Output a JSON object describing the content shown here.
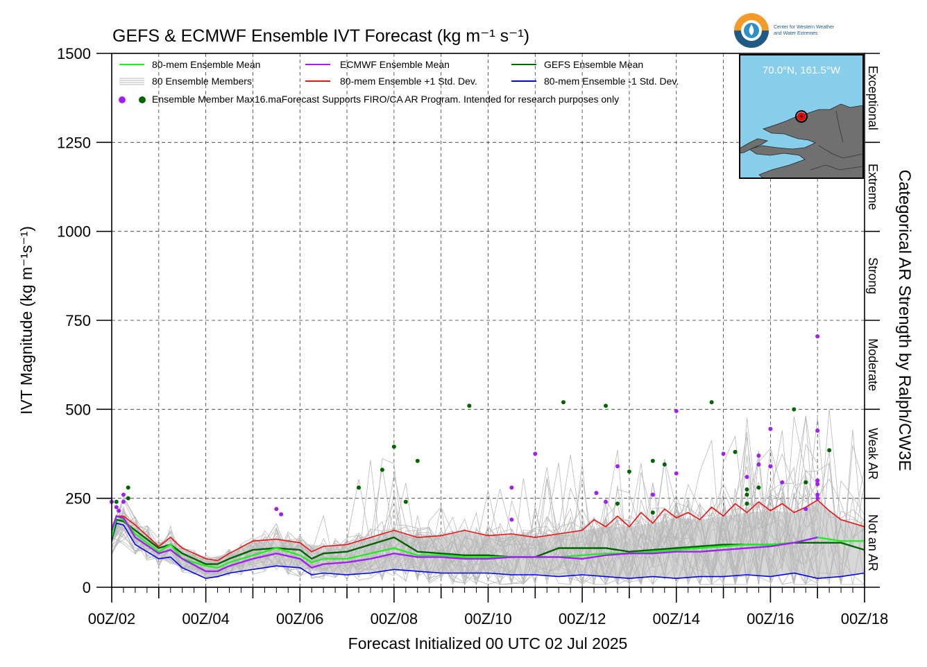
{
  "colors": {
    "ens_mean": "#22ee22",
    "members": "#b8b8b8",
    "ecmwf_mean": "#a020f0",
    "plus_std": "#ee1111",
    "gefs_mean": "#006400",
    "minus_std": "#0000ee",
    "spread_fill": "#d3d3d3",
    "map_ocean": "#87ceeb",
    "map_land": "#707070",
    "marker": "#ee0000"
  },
  "logo": {
    "line1": "Center for Western Weather",
    "line2": "and Water Extremes"
  },
  "map_inset": {
    "location": "70.0°N, 161.5°W"
  },
  "chart_data": {
    "type": "line",
    "title": "GEFS & ECMWF Ensemble IVT Forecast (kg m⁻¹ s⁻¹)",
    "xlabel": "Forecast Initialized 00 UTC 02 Jul 2025",
    "ylabel": "IVT Magnitude (kg m⁻¹s⁻¹)",
    "right_axis_title": "Categorical AR Strength by Ralph/CW3E",
    "ylim": [
      0,
      1500
    ],
    "yticks": [
      0,
      250,
      500,
      750,
      1000,
      1250,
      1500
    ],
    "xlim_days": [
      2,
      18
    ],
    "xtick_labels": [
      "00Z/02",
      "00Z/04",
      "00Z/06",
      "00Z/08",
      "00Z/10",
      "00Z/12",
      "00Z/14",
      "00Z/16",
      "00Z/18"
    ],
    "categories": [
      {
        "label": "Not an AR",
        "range": [
          0,
          250
        ]
      },
      {
        "label": "Weak AR",
        "range": [
          250,
          500
        ]
      },
      {
        "label": "Moderate",
        "range": [
          500,
          750
        ]
      },
      {
        "label": "Strong",
        "range": [
          750,
          1000
        ]
      },
      {
        "label": "Extreme",
        "range": [
          1000,
          1250
        ]
      },
      {
        "label": "Exceptional",
        "range": [
          1250,
          1500
        ]
      }
    ],
    "legend": {
      "ens_mean": "80-mem Ensemble Mean",
      "members": "80 Ensemble Members",
      "ecmwf_mean": "ECMWF Ensemble Mean",
      "plus_std": "80-mem Ensemble +1 Std. Dev.",
      "gefs_mean": "GEFS Ensemble Mean",
      "minus_std": "80-mem Ensemble -1 Std. Dev.",
      "max": "Ensemble Member Max",
      "note": "16.maForecast Supports FIRO/CA AR Program. Intended for research purposes only"
    },
    "series": [
      {
        "name": "80-mem Ensemble Mean",
        "key": "ens_mean",
        "x": [
          2.0,
          2.1,
          2.25,
          2.5,
          3.0,
          3.25,
          3.5,
          4.0,
          4.25,
          4.5,
          5.0,
          5.5,
          6.0,
          6.25,
          6.5,
          7.0,
          7.5,
          8.0,
          8.5,
          9.0,
          9.5,
          10.0,
          10.5,
          11.0,
          11.5,
          12.0,
          12.5,
          13.0,
          13.5,
          14.0,
          14.5,
          15.0,
          15.5,
          16.0,
          16.5,
          17.0,
          17.5,
          18.0
        ],
        "y": [
          140,
          200,
          190,
          150,
          100,
          120,
          80,
          60,
          55,
          70,
          90,
          110,
          90,
          70,
          80,
          80,
          95,
          110,
          90,
          90,
          85,
          85,
          85,
          85,
          85,
          90,
          95,
          95,
          100,
          105,
          110,
          115,
          120,
          120,
          125,
          140,
          130,
          130
        ]
      },
      {
        "name": "ECMWF Ensemble Mean",
        "key": "ecmwf_mean",
        "x": [
          2.0,
          2.1,
          2.25,
          2.5,
          3.0,
          3.25,
          3.5,
          4.0,
          4.25,
          4.5,
          5.0,
          5.5,
          6.0,
          6.25,
          6.5,
          7.0,
          7.5,
          8.0,
          8.5,
          9.0,
          9.5,
          10.0,
          10.5,
          11.0,
          11.5,
          12.0,
          12.5,
          13.0,
          13.5,
          14.0,
          14.5,
          15.0,
          15.5,
          16.0,
          16.5,
          17.0
        ],
        "y": [
          160,
          200,
          195,
          140,
          95,
          105,
          80,
          45,
          45,
          60,
          80,
          95,
          80,
          55,
          65,
          70,
          80,
          95,
          85,
          85,
          80,
          80,
          85,
          85,
          85,
          80,
          90,
          95,
          95,
          100,
          100,
          105,
          110,
          115,
          125,
          140
        ]
      },
      {
        "name": "GEFS Ensemble Mean",
        "key": "gefs_mean",
        "x": [
          2.0,
          2.1,
          2.25,
          2.5,
          3.0,
          3.25,
          3.5,
          4.0,
          4.25,
          4.5,
          5.0,
          5.5,
          6.0,
          6.25,
          6.5,
          7.0,
          7.5,
          8.0,
          8.5,
          9.0,
          9.5,
          10.0,
          10.5,
          11.0,
          11.5,
          12.0,
          12.5,
          13.0,
          13.5,
          14.0,
          14.5,
          15.0,
          15.5,
          16.0,
          16.5,
          17.0,
          17.5,
          18.0
        ],
        "y": [
          135,
          190,
          185,
          160,
          110,
          120,
          95,
          65,
          65,
          80,
          105,
          110,
          105,
          80,
          95,
          100,
          120,
          140,
          100,
          95,
          90,
          90,
          85,
          85,
          110,
          110,
          110,
          100,
          105,
          110,
          115,
          120,
          120,
          120,
          125,
          125,
          125,
          105
        ]
      },
      {
        "name": "80-mem Ensemble +1 Std. Dev.",
        "key": "plus_std",
        "x": [
          2.0,
          2.1,
          2.25,
          2.5,
          3.0,
          3.25,
          3.5,
          4.0,
          4.25,
          4.5,
          5.0,
          5.5,
          6.0,
          6.25,
          6.5,
          7.0,
          7.5,
          8.0,
          8.5,
          9.0,
          9.5,
          10.0,
          10.5,
          11.0,
          11.5,
          12.0,
          12.25,
          12.5,
          12.75,
          13.0,
          13.25,
          13.5,
          13.75,
          14.0,
          14.25,
          14.5,
          14.75,
          15.0,
          15.25,
          15.5,
          15.75,
          16.0,
          16.25,
          16.5,
          16.75,
          17.0,
          17.25,
          17.5,
          18.0
        ],
        "y": [
          160,
          200,
          200,
          175,
          115,
          140,
          110,
          80,
          75,
          95,
          130,
          135,
          125,
          100,
          115,
          120,
          140,
          160,
          140,
          145,
          160,
          145,
          150,
          140,
          150,
          160,
          190,
          170,
          200,
          170,
          210,
          180,
          220,
          195,
          210,
          190,
          225,
          200,
          235,
          210,
          240,
          215,
          235,
          210,
          225,
          245,
          215,
          190,
          170
        ]
      },
      {
        "name": "80-mem Ensemble -1 Std. Dev.",
        "key": "minus_std",
        "x": [
          2.0,
          2.1,
          2.25,
          2.5,
          3.0,
          3.25,
          3.5,
          4.0,
          4.25,
          4.5,
          5.0,
          5.5,
          6.0,
          6.25,
          6.5,
          7.0,
          7.5,
          8.0,
          8.5,
          9.0,
          9.5,
          10.0,
          10.5,
          11.0,
          11.5,
          12.0,
          12.5,
          13.0,
          13.5,
          14.0,
          14.5,
          15.0,
          15.5,
          16.0,
          16.5,
          17.0,
          17.5,
          18.0
        ],
        "y": [
          130,
          180,
          175,
          120,
          80,
          85,
          55,
          25,
          30,
          40,
          50,
          60,
          55,
          35,
          40,
          35,
          40,
          50,
          45,
          40,
          40,
          40,
          35,
          35,
          30,
          35,
          30,
          25,
          30,
          25,
          30,
          30,
          35,
          30,
          40,
          25,
          30,
          40
        ]
      }
    ],
    "spread_band": {
      "x": [
        2.0,
        2.25,
        2.5,
        3.0,
        3.5,
        4.0,
        4.5,
        5.0,
        5.5,
        6.0,
        6.5,
        7.0,
        7.5,
        8.0,
        8.5,
        9.0,
        9.5,
        10.0,
        10.5,
        11.0,
        11.5,
        12.0,
        12.5,
        13.0,
        13.5,
        14.0,
        14.5,
        15.0,
        15.5,
        16.0,
        16.5,
        17.0,
        17.5,
        18.0
      ],
      "upper": [
        160,
        200,
        175,
        115,
        110,
        80,
        95,
        130,
        135,
        125,
        115,
        120,
        140,
        160,
        140,
        145,
        160,
        145,
        150,
        140,
        150,
        160,
        170,
        170,
        180,
        195,
        190,
        200,
        210,
        215,
        210,
        245,
        190,
        170
      ],
      "lower": [
        130,
        175,
        120,
        80,
        55,
        25,
        40,
        50,
        60,
        55,
        40,
        35,
        40,
        50,
        45,
        40,
        40,
        40,
        35,
        35,
        30,
        35,
        30,
        25,
        30,
        25,
        30,
        30,
        35,
        30,
        40,
        25,
        30,
        40
      ]
    },
    "max_points_ecmwf": [
      {
        "x": 2.0,
        "y": 240
      },
      {
        "x": 2.1,
        "y": 225
      },
      {
        "x": 2.15,
        "y": 215
      },
      {
        "x": 2.25,
        "y": 260
      },
      {
        "x": 2.25,
        "y": 240
      },
      {
        "x": 5.5,
        "y": 220
      },
      {
        "x": 5.6,
        "y": 205
      },
      {
        "x": 10.5,
        "y": 280
      },
      {
        "x": 10.5,
        "y": 190
      },
      {
        "x": 11.0,
        "y": 375
      },
      {
        "x": 12.3,
        "y": 265
      },
      {
        "x": 12.5,
        "y": 240
      },
      {
        "x": 12.75,
        "y": 340
      },
      {
        "x": 13.5,
        "y": 260
      },
      {
        "x": 14.0,
        "y": 320
      },
      {
        "x": 14.0,
        "y": 495
      },
      {
        "x": 15.0,
        "y": 375
      },
      {
        "x": 15.5,
        "y": 310
      },
      {
        "x": 15.75,
        "y": 370
      },
      {
        "x": 15.75,
        "y": 345
      },
      {
        "x": 16.0,
        "y": 445
      },
      {
        "x": 16.0,
        "y": 340
      },
      {
        "x": 16.25,
        "y": 295
      },
      {
        "x": 16.75,
        "y": 220
      },
      {
        "x": 17.0,
        "y": 705
      },
      {
        "x": 17.0,
        "y": 440
      },
      {
        "x": 17.0,
        "y": 300
      },
      {
        "x": 17.0,
        "y": 290
      },
      {
        "x": 17.0,
        "y": 260
      },
      {
        "x": 17.0,
        "y": 250
      }
    ],
    "max_points_gefs": [
      {
        "x": 2.1,
        "y": 240
      },
      {
        "x": 2.35,
        "y": 280
      },
      {
        "x": 2.35,
        "y": 250
      },
      {
        "x": 7.25,
        "y": 280
      },
      {
        "x": 7.75,
        "y": 330
      },
      {
        "x": 8.0,
        "y": 395
      },
      {
        "x": 8.25,
        "y": 240
      },
      {
        "x": 8.5,
        "y": 355
      },
      {
        "x": 9.6,
        "y": 510
      },
      {
        "x": 11.6,
        "y": 520
      },
      {
        "x": 12.5,
        "y": 510
      },
      {
        "x": 12.75,
        "y": 235
      },
      {
        "x": 13.0,
        "y": 325
      },
      {
        "x": 13.5,
        "y": 355
      },
      {
        "x": 13.5,
        "y": 210
      },
      {
        "x": 13.75,
        "y": 345
      },
      {
        "x": 14.75,
        "y": 520
      },
      {
        "x": 15.25,
        "y": 380
      },
      {
        "x": 15.5,
        "y": 275
      },
      {
        "x": 15.5,
        "y": 260
      },
      {
        "x": 15.5,
        "y": 235
      },
      {
        "x": 15.75,
        "y": 280
      },
      {
        "x": 16.5,
        "y": 500
      },
      {
        "x": 16.75,
        "y": 295
      },
      {
        "x": 17.25,
        "y": 385
      }
    ]
  }
}
